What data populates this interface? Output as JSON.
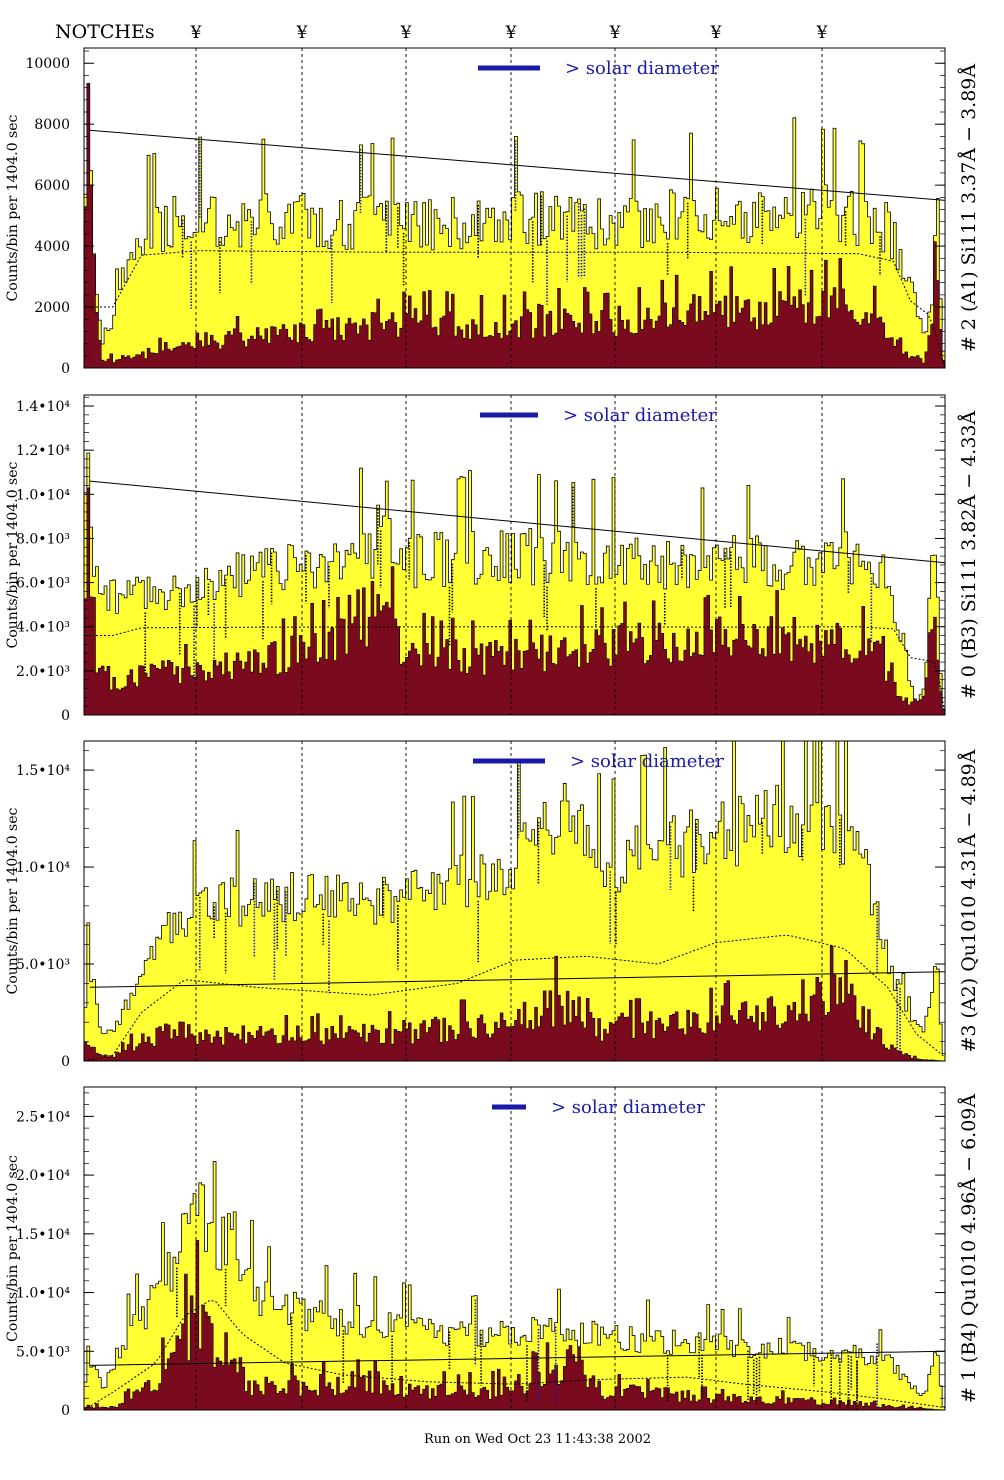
{
  "header": {
    "notches_label": "NOTCHEs",
    "notch_marker": "¥",
    "notch_count": 7
  },
  "footer": {
    "run_stamp": "Run on Wed Oct 23 11:43:38 2002"
  },
  "colors": {
    "fill": "#ffff33",
    "dark": "#7a0a1e",
    "blue": "#1a1aa8",
    "line": "#000000"
  },
  "chart_data": [
    {
      "type": "histogram",
      "title": "# 2 (A1) Si111  3.37Å − 3.89Å",
      "ylabel": "Counts/bin per   1404.0 sec",
      "ylim": [
        0,
        10500
      ],
      "yticks": [
        0,
        2000,
        4000,
        6000,
        8000,
        10000
      ],
      "ytick_labels": [
        "0",
        "2000",
        "4000",
        "6000",
        "8000",
        "10000"
      ],
      "legend": "> solar diameter",
      "bins": 300,
      "envelope": [
        [
          0,
          0
        ],
        [
          1,
          9800
        ],
        [
          2,
          7600
        ],
        [
          4,
          3200
        ],
        [
          6,
          800
        ],
        [
          10,
          1500
        ],
        [
          14,
          2800
        ],
        [
          20,
          4200
        ],
        [
          30,
          4500
        ],
        [
          40,
          4600
        ],
        [
          50,
          4400
        ],
        [
          70,
          4700
        ],
        [
          90,
          4500
        ],
        [
          110,
          4600
        ],
        [
          130,
          4500
        ],
        [
          150,
          4700
        ],
        [
          170,
          4600
        ],
        [
          190,
          4500
        ],
        [
          210,
          4800
        ],
        [
          230,
          4700
        ],
        [
          250,
          5000
        ],
        [
          270,
          4600
        ],
        [
          280,
          4400
        ],
        [
          288,
          2800
        ],
        [
          293,
          800
        ],
        [
          296,
          2200
        ],
        [
          297,
          7500
        ],
        [
          299,
          900
        ],
        [
          300,
          0
        ]
      ],
      "dark_envelope": [
        [
          0,
          0
        ],
        [
          1,
          7800
        ],
        [
          2,
          6200
        ],
        [
          4,
          2500
        ],
        [
          6,
          200
        ],
        [
          20,
          400
        ],
        [
          40,
          900
        ],
        [
          60,
          1000
        ],
        [
          80,
          1100
        ],
        [
          100,
          1300
        ],
        [
          120,
          1400
        ],
        [
          140,
          1300
        ],
        [
          160,
          1500
        ],
        [
          180,
          1400
        ],
        [
          200,
          1600
        ],
        [
          220,
          1800
        ],
        [
          240,
          1900
        ],
        [
          250,
          1800
        ],
        [
          265,
          2000
        ],
        [
          275,
          1500
        ],
        [
          285,
          500
        ],
        [
          293,
          200
        ],
        [
          296,
          1500
        ],
        [
          297,
          5000
        ],
        [
          299,
          500
        ],
        [
          300,
          0
        ]
      ],
      "noise": 0.42,
      "dark_noise": 0.65,
      "trend_line": [
        [
          2,
          7800
        ],
        [
          300,
          5500
        ]
      ],
      "dashed_curve": [
        [
          10,
          2000
        ],
        [
          20,
          3700
        ],
        [
          40,
          3850
        ],
        [
          100,
          3800
        ],
        [
          200,
          3800
        ],
        [
          270,
          3750
        ],
        [
          282,
          3500
        ],
        [
          288,
          2200
        ],
        [
          295,
          1700
        ],
        [
          300,
          0
        ]
      ]
    },
    {
      "type": "histogram",
      "title": "# 0 (B3) Si111  3.82Å − 4.33Å",
      "ylabel": "Counts/bin per   1404.0 sec",
      "ylim": [
        0,
        14500
      ],
      "yticks": [
        0,
        2000,
        4000,
        6000,
        8000,
        10000,
        12000,
        14000
      ],
      "ytick_labels": [
        "0",
        "2.0•10³",
        "4.0•10³",
        "6.0•10³",
        "8.0•10³",
        "1.0•10⁴",
        "1.2•10⁴",
        "1.4•10⁴"
      ],
      "legend": "> solar diameter",
      "bins": 300,
      "envelope": [
        [
          0,
          0
        ],
        [
          1,
          12500
        ],
        [
          2,
          11000
        ],
        [
          4,
          6000
        ],
        [
          10,
          5000
        ],
        [
          20,
          5200
        ],
        [
          40,
          5600
        ],
        [
          60,
          6200
        ],
        [
          80,
          6400
        ],
        [
          100,
          7000
        ],
        [
          105,
          9000
        ],
        [
          110,
          6600
        ],
        [
          130,
          6800
        ],
        [
          150,
          6900
        ],
        [
          170,
          6700
        ],
        [
          190,
          6800
        ],
        [
          210,
          6500
        ],
        [
          230,
          6600
        ],
        [
          250,
          6600
        ],
        [
          270,
          6800
        ],
        [
          280,
          6000
        ],
        [
          286,
          2000
        ],
        [
          290,
          500
        ],
        [
          293,
          1200
        ],
        [
          296,
          9500
        ],
        [
          299,
          600
        ],
        [
          300,
          0
        ]
      ],
      "dark_envelope": [
        [
          0,
          0
        ],
        [
          1,
          10500
        ],
        [
          2,
          9000
        ],
        [
          4,
          2500
        ],
        [
          10,
          1400
        ],
        [
          20,
          1700
        ],
        [
          40,
          2000
        ],
        [
          60,
          2300
        ],
        [
          80,
          3000
        ],
        [
          100,
          3500
        ],
        [
          105,
          5500
        ],
        [
          110,
          2800
        ],
        [
          140,
          2500
        ],
        [
          160,
          2700
        ],
        [
          180,
          3000
        ],
        [
          200,
          3200
        ],
        [
          220,
          3300
        ],
        [
          240,
          3300
        ],
        [
          260,
          3200
        ],
        [
          275,
          3000
        ],
        [
          285,
          600
        ],
        [
          293,
          700
        ],
        [
          296,
          6200
        ],
        [
          299,
          300
        ],
        [
          300,
          0
        ]
      ],
      "noise": 0.4,
      "dark_noise": 0.55,
      "trend_line": [
        [
          2,
          10600
        ],
        [
          300,
          6900
        ]
      ],
      "dashed_curve": [
        [
          10,
          3600
        ],
        [
          20,
          3950
        ],
        [
          60,
          3980
        ],
        [
          150,
          4000
        ],
        [
          230,
          3980
        ],
        [
          270,
          4000
        ],
        [
          282,
          3900
        ],
        [
          288,
          2600
        ],
        [
          297,
          2400
        ],
        [
          300,
          0
        ]
      ]
    },
    {
      "type": "histogram",
      "title": "#3 (A2) Qu1010  4.31Å − 4.89Å",
      "ylabel": "Counts/bin per   1404.0 sec",
      "ylim": [
        0,
        16500
      ],
      "yticks": [
        0,
        5000,
        10000,
        15000
      ],
      "ytick_labels": [
        "0",
        "5.0•10³",
        "1.0•10⁴",
        "1.5•10⁴"
      ],
      "legend": "> solar diameter",
      "bins": 300,
      "envelope": [
        [
          0,
          0
        ],
        [
          1,
          5000
        ],
        [
          3,
          4000
        ],
        [
          6,
          1200
        ],
        [
          10,
          1500
        ],
        [
          20,
          4000
        ],
        [
          30,
          6800
        ],
        [
          45,
          7800
        ],
        [
          60,
          8000
        ],
        [
          80,
          8200
        ],
        [
          100,
          7800
        ],
        [
          120,
          8700
        ],
        [
          140,
          9000
        ],
        [
          160,
          11000
        ],
        [
          170,
          12500
        ],
        [
          180,
          9500
        ],
        [
          200,
          10500
        ],
        [
          220,
          11000
        ],
        [
          240,
          12000
        ],
        [
          250,
          12000
        ],
        [
          260,
          11600
        ],
        [
          270,
          11000
        ],
        [
          280,
          5000
        ],
        [
          288,
          2000
        ],
        [
          293,
          1500
        ],
        [
          297,
          5500
        ],
        [
          299,
          800
        ],
        [
          300,
          0
        ]
      ],
      "dark_envelope": [
        [
          0,
          0
        ],
        [
          1,
          1500
        ],
        [
          4,
          300
        ],
        [
          10,
          200
        ],
        [
          20,
          1000
        ],
        [
          30,
          1400
        ],
        [
          60,
          1200
        ],
        [
          100,
          1300
        ],
        [
          140,
          1700
        ],
        [
          160,
          2500
        ],
        [
          170,
          3200
        ],
        [
          180,
          1600
        ],
        [
          220,
          2000
        ],
        [
          240,
          2500
        ],
        [
          260,
          3200
        ],
        [
          270,
          2500
        ],
        [
          280,
          700
        ],
        [
          290,
          100
        ],
        [
          300,
          0
        ]
      ],
      "noise": 0.35,
      "dark_noise": 0.75,
      "trend_line": [
        [
          2,
          3800
        ],
        [
          300,
          4600
        ]
      ],
      "dashed_curve": [
        [
          0,
          0
        ],
        [
          10,
          300
        ],
        [
          20,
          2500
        ],
        [
          35,
          4200
        ],
        [
          60,
          3800
        ],
        [
          100,
          3400
        ],
        [
          130,
          4000
        ],
        [
          150,
          5200
        ],
        [
          175,
          5400
        ],
        [
          200,
          5000
        ],
        [
          220,
          6100
        ],
        [
          245,
          6500
        ],
        [
          265,
          5800
        ],
        [
          280,
          3800
        ],
        [
          290,
          1400
        ],
        [
          300,
          200
        ]
      ]
    },
    {
      "type": "histogram",
      "title": "# 1 (B4) Qu1010 4.96Å − 6.09Å",
      "ylabel": "Counts/bin per   1404.0 sec",
      "ylim": [
        0,
        27500
      ],
      "yticks": [
        0,
        5000,
        10000,
        15000,
        20000,
        25000
      ],
      "ytick_labels": [
        "0",
        "5.0•10³",
        "1.0•10⁴",
        "1.5•10⁴",
        "2.0•10⁴",
        "2.5•10⁴"
      ],
      "legend": "> solar diameter",
      "bins": 300,
      "envelope": [
        [
          0,
          0
        ],
        [
          1,
          5200
        ],
        [
          4,
          3000
        ],
        [
          8,
          1500
        ],
        [
          12,
          5000
        ],
        [
          20,
          7500
        ],
        [
          28,
          10000
        ],
        [
          35,
          15000
        ],
        [
          40,
          18000
        ],
        [
          45,
          13000
        ],
        [
          52,
          14500
        ],
        [
          60,
          9000
        ],
        [
          80,
          7600
        ],
        [
          100,
          7000
        ],
        [
          120,
          6200
        ],
        [
          140,
          6000
        ],
        [
          160,
          6600
        ],
        [
          180,
          6000
        ],
        [
          200,
          5600
        ],
        [
          220,
          5400
        ],
        [
          240,
          5000
        ],
        [
          260,
          4600
        ],
        [
          280,
          4200
        ],
        [
          288,
          2000
        ],
        [
          293,
          1200
        ],
        [
          297,
          5200
        ],
        [
          299,
          500
        ],
        [
          300,
          0
        ]
      ],
      "dark_envelope": [
        [
          0,
          0
        ],
        [
          1,
          300
        ],
        [
          10,
          200
        ],
        [
          20,
          1500
        ],
        [
          30,
          3500
        ],
        [
          37,
          6500
        ],
        [
          42,
          8000
        ],
        [
          50,
          4000
        ],
        [
          60,
          1800
        ],
        [
          80,
          2000
        ],
        [
          100,
          2200
        ],
        [
          120,
          1600
        ],
        [
          140,
          1500
        ],
        [
          160,
          2600
        ],
        [
          170,
          3600
        ],
        [
          180,
          1500
        ],
        [
          200,
          1300
        ],
        [
          220,
          900
        ],
        [
          240,
          800
        ],
        [
          260,
          700
        ],
        [
          280,
          300
        ],
        [
          300,
          0
        ]
      ],
      "noise": 0.42,
      "dark_noise": 0.85,
      "trend_line": [
        [
          2,
          3800
        ],
        [
          300,
          5000
        ]
      ],
      "dashed_curve": [
        [
          0,
          0
        ],
        [
          10,
          1500
        ],
        [
          25,
          4000
        ],
        [
          35,
          8000
        ],
        [
          45,
          9500
        ],
        [
          55,
          6500
        ],
        [
          70,
          4000
        ],
        [
          90,
          3000
        ],
        [
          120,
          2400
        ],
        [
          150,
          2200
        ],
        [
          180,
          2600
        ],
        [
          210,
          2800
        ],
        [
          230,
          2200
        ],
        [
          260,
          1500
        ],
        [
          280,
          900
        ],
        [
          300,
          200
        ]
      ]
    }
  ]
}
